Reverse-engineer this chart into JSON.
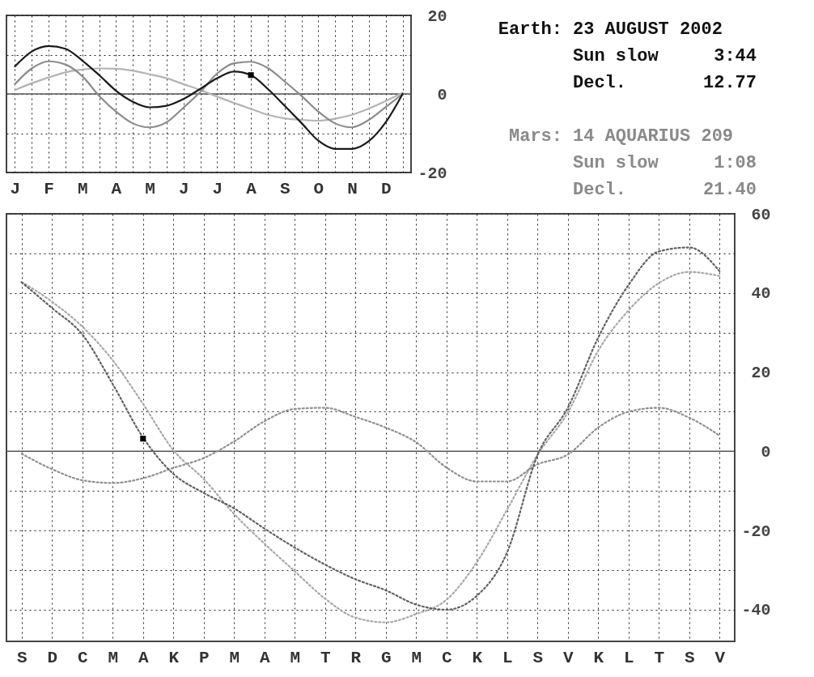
{
  "chart_data": [
    {
      "type": "line",
      "ylim": [
        -20,
        20
      ],
      "categories": [
        "J",
        null,
        "F",
        null,
        "M",
        null,
        "A",
        null,
        "M",
        null,
        "J",
        null,
        "J",
        null,
        "A",
        null,
        "S",
        null,
        "O",
        null,
        "N",
        null,
        "D",
        null
      ],
      "yticks": [
        20,
        {
          "value": 10,
          "label": null
        },
        0,
        {
          "value": -10,
          "label": null
        },
        -20
      ],
      "grid": true,
      "line_style": "solid",
      "marker": "none",
      "ref_lines": [
        {
          "axis": "y",
          "value": 0,
          "line_style": "solid",
          "color": "#555555"
        }
      ],
      "series": [
        {
          "color": "#b4b4b4",
          "values": [
            1.0,
            2.7,
            4.2,
            5.5,
            6.2,
            6.5,
            6.4,
            5.9,
            5.0,
            4.0,
            2.5,
            1.0,
            -0.7,
            -2.3,
            -3.8,
            -5.3,
            -6.2,
            -6.6,
            -6.8,
            -6.3,
            -5.3,
            -3.7,
            -1.8,
            0.3
          ]
        },
        {
          "color": "#8c8c8c",
          "values": [
            2.5,
            6.5,
            8.3,
            7.5,
            4.5,
            -0.5,
            -4.5,
            -7.5,
            -8.5,
            -7.2,
            -3.5,
            0.5,
            5.2,
            7.8,
            8.2,
            6.6,
            3.2,
            -0.5,
            -4.5,
            -7.5,
            -8.5,
            -6.6,
            -3.3,
            0.0
          ]
        },
        {
          "color": "#1a1a1a",
          "values": [
            7.0,
            10.8,
            12.2,
            11.5,
            8.5,
            4.8,
            0.8,
            -2.0,
            -3.4,
            -3.0,
            -1.3,
            1.3,
            4.0,
            5.7,
            4.8,
            1.3,
            -3.0,
            -7.4,
            -11.9,
            -14.0,
            -14.0,
            -12.0,
            -7.2,
            0.0
          ]
        },
        {
          "type": "scatter",
          "marker": "square",
          "color": "#000000",
          "values": [
            null,
            null,
            null,
            null,
            null,
            null,
            null,
            null,
            null,
            null,
            null,
            null,
            null,
            null,
            4.8,
            null,
            null,
            null,
            null,
            null,
            null,
            null,
            null,
            null
          ]
        }
      ]
    },
    {
      "type": "other",
      "annotations": [
        "Earth:",
        "23 AUGUST 2002",
        "Sun slow",
        "3:44",
        "Decl.",
        "12.77",
        "Mars:",
        "14 AQUARIUS 209",
        "Sun slow",
        "1:08",
        "Decl.",
        "21.40"
      ],
      "colors": [
        "#111111",
        "#111111",
        "#111111",
        "#111111",
        "#111111",
        "#111111",
        "#8a8a8a",
        "#8a8a8a",
        "#8a8a8a",
        "#8a8a8a",
        "#8a8a8a",
        "#8a8a8a"
      ]
    },
    {
      "type": "line",
      "ylim": [
        -48,
        60
      ],
      "categories": [
        "S",
        "D",
        "C",
        "M",
        "A",
        "K",
        "P",
        "M",
        "A",
        "M",
        "T",
        "R",
        "G",
        "M",
        "C",
        "K",
        "L",
        "S",
        "V",
        "K",
        "L",
        "T",
        "S",
        "V"
      ],
      "yticks": [
        60,
        {
          "value": 50,
          "label": null
        },
        40,
        {
          "value": 30,
          "label": null
        },
        20,
        {
          "value": 10,
          "label": null
        },
        0,
        {
          "value": -10,
          "label": null
        },
        -20,
        {
          "value": -30,
          "label": null
        },
        -40
      ],
      "grid": true,
      "line_style": "dotted",
      "marker": "none",
      "ref_lines": [
        {
          "axis": "y",
          "value": 0,
          "line_style": "solid",
          "color": "#555555"
        }
      ],
      "series": [
        {
          "color": "#a8a8a8",
          "values": [
            42.8,
            37.8,
            31.5,
            23.0,
            12.0,
            0.3,
            -7.0,
            -15.8,
            -23.3,
            -30.3,
            -37.2,
            -42.0,
            -43.2,
            -41.1,
            -37.5,
            -28.0,
            -14.7,
            -0.9,
            9.8,
            25.4,
            35.6,
            42.5,
            45.3,
            44.3
          ]
        },
        {
          "color": "#909090",
          "values": [
            -0.6,
            -4.5,
            -7.3,
            -8.0,
            -6.8,
            -4.2,
            -1.7,
            2.5,
            7.6,
            10.7,
            11.0,
            8.7,
            6.0,
            2.3,
            -4.1,
            -7.6,
            -7.6,
            -3.3,
            -0.8,
            6.0,
            10.0,
            11.0,
            8.5,
            4.0
          ]
        },
        {
          "color": "#606060",
          "values": [
            42.7,
            36.2,
            29.5,
            17.0,
            3.5,
            -5.7,
            -10.5,
            -14.4,
            -19.5,
            -24.3,
            -28.6,
            -32.3,
            -35.1,
            -38.7,
            -40.0,
            -36.5,
            -25.5,
            -1.0,
            11.0,
            28.7,
            42.0,
            50.5,
            51.5,
            45.5
          ]
        },
        {
          "type": "scatter",
          "marker": "square",
          "color": "#000000",
          "values": [
            null,
            null,
            null,
            null,
            3.2,
            null,
            null,
            null,
            null,
            null,
            null,
            null,
            null,
            null,
            null,
            null,
            null,
            null,
            null,
            null,
            null,
            null,
            null,
            null
          ]
        }
      ]
    }
  ]
}
